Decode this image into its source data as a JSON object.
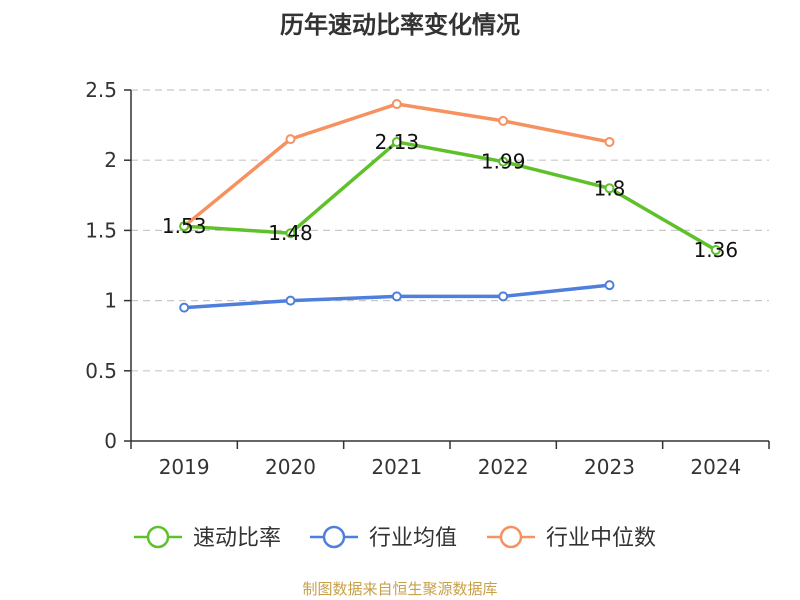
{
  "chart_data": {
    "type": "line",
    "title": "历年速动比率变化情况",
    "categories": [
      "2019",
      "2020",
      "2021",
      "2022",
      "2023",
      "2024"
    ],
    "ylim": [
      0,
      2.5
    ],
    "yticks": [
      "0",
      "0.5",
      "1",
      "1.5",
      "2",
      "2.5"
    ],
    "ytick_values": [
      0,
      0.5,
      1,
      1.5,
      2,
      2.5
    ],
    "grid": true,
    "legend_position": "bottom",
    "series": [
      {
        "name": "速动比率",
        "color": "#5ec12a",
        "values": [
          1.53,
          1.48,
          2.13,
          1.99,
          1.8,
          1.36
        ],
        "labels": [
          "1.53",
          "1.48",
          "2.13",
          "1.99",
          "1.8",
          "1.36"
        ]
      },
      {
        "name": "行业均值",
        "color": "#4f7fdc",
        "values": [
          0.95,
          1.0,
          1.03,
          1.03,
          1.11,
          null
        ]
      },
      {
        "name": "行业中位数",
        "color": "#f69160",
        "values": [
          1.53,
          2.15,
          2.4,
          2.28,
          2.13,
          null
        ]
      }
    ],
    "source": "制图数据来自恒生聚源数据库"
  }
}
